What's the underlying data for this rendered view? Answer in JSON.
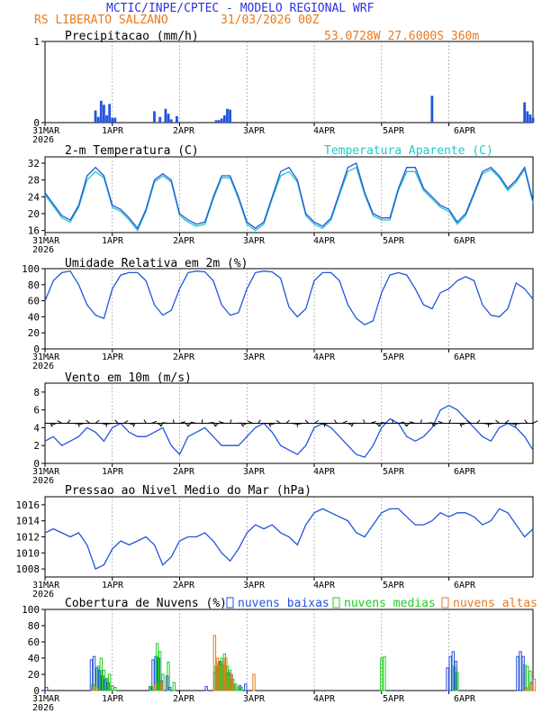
{
  "header": {
    "title": "MCTIC/INPE/CPTEC - MODELO REGIONAL WRF",
    "station": "RS LIBERATO SALZANO",
    "run": "31/03/2026 00Z",
    "coords": "53.0728W 27.6000S 360m"
  },
  "colors": {
    "title": "#3030e0",
    "orange": "#e87a20",
    "blue": "#2255dd",
    "cyan": "#20c8c8",
    "green": "#22cc22",
    "black": "#000000"
  },
  "x_axis": {
    "ticks": [
      "31MAR",
      "1APR",
      "2APR",
      "3APR",
      "4APR",
      "5APR",
      "6APR"
    ],
    "year": "2026",
    "hours_total": 174
  },
  "chart_data": [
    {
      "type": "bar",
      "name": "precip",
      "title": "Precipitacao (mm/h)",
      "ylim": [
        0,
        1
      ],
      "yticks": [
        0,
        1
      ],
      "series": [
        {
          "name": "precipitacao",
          "x": [
            18,
            19,
            20,
            21,
            22,
            23,
            24,
            25,
            39,
            41,
            43,
            44,
            45,
            47,
            61,
            62,
            63,
            64,
            65,
            66,
            67,
            121,
            138,
            171,
            172,
            173,
            174
          ],
          "values": [
            0.15,
            0.07,
            0.27,
            0.22,
            0.09,
            0.23,
            0.06,
            0.06,
            0.14,
            0.07,
            0.17,
            0.11,
            0.04,
            0.08,
            0.03,
            0.03,
            0.05,
            0.09,
            0.17,
            0.16,
            0.01,
            0.01,
            0.33,
            0.25,
            0.14,
            0.1,
            0.06
          ]
        }
      ]
    },
    {
      "type": "line",
      "name": "temp",
      "title": "2-m Temperatura (C)",
      "legend": "Temperatura Aparente (C)",
      "ylim": [
        15.5,
        33.5
      ],
      "yticks": [
        16,
        20,
        24,
        28,
        32
      ],
      "series": [
        {
          "name": "Temperatura 2m",
          "x": [
            0,
            6,
            9,
            12,
            15,
            18,
            21,
            24,
            27,
            30,
            33,
            36,
            39,
            42,
            45,
            48,
            51,
            54,
            57,
            60,
            63,
            66,
            69,
            72,
            75,
            78,
            81,
            84,
            87,
            90,
            93,
            96,
            99,
            102,
            105,
            108,
            111,
            114,
            117,
            120,
            123,
            126,
            129,
            132,
            135,
            138,
            141,
            144,
            147,
            150,
            153,
            156,
            159,
            162,
            165,
            168,
            171,
            174
          ],
          "values": [
            25,
            19.5,
            18.5,
            22,
            29,
            31,
            29,
            22,
            21,
            19,
            16.5,
            21,
            28,
            29.5,
            28,
            20,
            18.5,
            17.5,
            18,
            24,
            29,
            29,
            24,
            18,
            16.5,
            18,
            24,
            30,
            31,
            28,
            20,
            18,
            17,
            19,
            25,
            31,
            32,
            25,
            20,
            19,
            19,
            26,
            31,
            31,
            26,
            24,
            22,
            21,
            18,
            20,
            25,
            30,
            31,
            29,
            26,
            28,
            31,
            23
          ]
        },
        {
          "name": "Temperatura Aparente",
          "x": [
            0,
            6,
            9,
            12,
            15,
            18,
            21,
            24,
            27,
            30,
            33,
            36,
            39,
            42,
            45,
            48,
            51,
            54,
            57,
            60,
            63,
            66,
            69,
            72,
            75,
            78,
            81,
            84,
            87,
            90,
            93,
            96,
            99,
            102,
            105,
            108,
            111,
            114,
            117,
            120,
            123,
            126,
            129,
            132,
            135,
            138,
            141,
            144,
            147,
            150,
            153,
            156,
            159,
            162,
            165,
            168,
            171,
            174
          ],
          "values": [
            24.5,
            19,
            18,
            21.5,
            28,
            30,
            28.5,
            21.5,
            20.5,
            18.5,
            16,
            20.5,
            27.5,
            29,
            27.5,
            19.5,
            18,
            17,
            17.5,
            23.5,
            28.5,
            28.5,
            23.5,
            17.5,
            16,
            17.5,
            23.5,
            29,
            30,
            27.5,
            19.5,
            17.5,
            16.5,
            18.5,
            24.5,
            30,
            31,
            24.5,
            19.5,
            18.5,
            18.5,
            25.5,
            30,
            30,
            25.5,
            23.5,
            21.5,
            20.5,
            17.5,
            19.5,
            24.5,
            29.5,
            30.5,
            28.5,
            25.5,
            27.5,
            30.5,
            22.5
          ]
        }
      ]
    },
    {
      "type": "line",
      "name": "rh",
      "title": "Umidade Relativa em 2m (%)",
      "ylim": [
        0,
        100
      ],
      "yticks": [
        0,
        20,
        40,
        60,
        80,
        100
      ],
      "series": [
        {
          "name": "UR",
          "x": [
            0,
            3,
            6,
            9,
            12,
            15,
            18,
            21,
            24,
            27,
            30,
            33,
            36,
            39,
            42,
            45,
            48,
            51,
            54,
            57,
            60,
            63,
            66,
            69,
            72,
            75,
            78,
            81,
            84,
            87,
            90,
            93,
            96,
            99,
            102,
            105,
            108,
            111,
            114,
            117,
            120,
            123,
            126,
            129,
            132,
            135,
            138,
            141,
            144,
            147,
            150,
            153,
            156,
            159,
            162,
            165,
            168,
            171,
            174
          ],
          "values": [
            60,
            85,
            95,
            97,
            80,
            55,
            42,
            38,
            75,
            92,
            95,
            95,
            85,
            55,
            42,
            48,
            75,
            95,
            97,
            96,
            85,
            55,
            42,
            45,
            75,
            95,
            97,
            96,
            88,
            52,
            40,
            50,
            85,
            95,
            95,
            85,
            55,
            38,
            30,
            35,
            70,
            92,
            95,
            92,
            75,
            55,
            50,
            70,
            75,
            85,
            90,
            85,
            55,
            42,
            40,
            50,
            82,
            75,
            62
          ]
        }
      ]
    },
    {
      "type": "line",
      "name": "wind",
      "title": "Vento em 10m (m/s)",
      "ylim": [
        0,
        9
      ],
      "yticks": [
        0,
        2,
        4,
        6,
        8
      ],
      "series": [
        {
          "name": "vento",
          "x": [
            0,
            3,
            6,
            9,
            12,
            15,
            18,
            21,
            24,
            27,
            30,
            33,
            36,
            39,
            42,
            45,
            48,
            51,
            54,
            57,
            60,
            63,
            66,
            69,
            72,
            75,
            78,
            81,
            84,
            87,
            90,
            93,
            96,
            99,
            102,
            105,
            108,
            111,
            114,
            117,
            120,
            123,
            126,
            129,
            132,
            135,
            138,
            141,
            144,
            147,
            150,
            153,
            156,
            159,
            162,
            165,
            168,
            171,
            174
          ],
          "values": [
            2.5,
            3.0,
            2.0,
            2.5,
            3.0,
            4.0,
            3.5,
            2.5,
            4.0,
            4.5,
            3.5,
            3.0,
            3.0,
            3.5,
            4.0,
            2.0,
            1.0,
            3.0,
            3.5,
            4.0,
            3.0,
            2.0,
            2.0,
            2.0,
            3.0,
            4.0,
            4.5,
            3.5,
            2.0,
            1.5,
            1.0,
            2.0,
            4.0,
            4.5,
            4.0,
            3.0,
            2.0,
            1.0,
            0.7,
            2.0,
            4.0,
            5.0,
            4.5,
            3.0,
            2.5,
            3.0,
            4.0,
            6.0,
            6.5,
            6.0,
            5.0,
            4.0,
            3.0,
            2.5,
            4.0,
            4.5,
            4.0,
            3.0,
            1.5
          ]
        }
      ]
    },
    {
      "type": "line",
      "name": "pres",
      "title": "Pressao ao Nivel Medio do Mar (hPa)",
      "ylim": [
        1007,
        1017
      ],
      "yticks": [
        1008,
        1010,
        1012,
        1014,
        1016
      ],
      "series": [
        {
          "name": "PNMM",
          "x": [
            0,
            3,
            6,
            9,
            12,
            15,
            18,
            21,
            24,
            27,
            30,
            33,
            36,
            39,
            42,
            45,
            48,
            51,
            54,
            57,
            60,
            63,
            66,
            69,
            72,
            75,
            78,
            81,
            84,
            87,
            90,
            93,
            96,
            99,
            102,
            105,
            108,
            111,
            114,
            117,
            120,
            123,
            126,
            129,
            132,
            135,
            138,
            141,
            144,
            147,
            150,
            153,
            156,
            159,
            162,
            165,
            168,
            171,
            174
          ],
          "values": [
            1012.5,
            1013,
            1012.5,
            1012,
            1012.5,
            1011,
            1008,
            1008.5,
            1010.5,
            1011.5,
            1011,
            1011.5,
            1012,
            1011,
            1008.5,
            1009.5,
            1011.5,
            1012,
            1012,
            1012.5,
            1011.5,
            1010,
            1009,
            1010.5,
            1012.5,
            1013.5,
            1013,
            1013.5,
            1012.5,
            1012,
            1011,
            1013.5,
            1015,
            1015.5,
            1015,
            1014.5,
            1014,
            1012.5,
            1012,
            1013.5,
            1015,
            1015.5,
            1015.5,
            1014.5,
            1013.5,
            1013.5,
            1014,
            1015,
            1014.5,
            1015,
            1015,
            1014.5,
            1013.5,
            1014,
            1015.5,
            1015,
            1013.5,
            1012,
            1013
          ]
        }
      ]
    },
    {
      "type": "bar",
      "name": "cloud",
      "title": "Cobertura de Nuvens (%)",
      "ylim": [
        0,
        100
      ],
      "yticks": [
        0,
        20,
        40,
        60,
        80,
        100
      ],
      "legend": [
        "nuvens baixas",
        "nuvens medias",
        "nuvens altas"
      ],
      "series": [
        {
          "name": "nuvens baixas",
          "x": [
            1,
            17,
            18,
            19,
            20,
            21,
            22,
            23,
            38,
            39,
            40,
            41,
            42,
            44,
            45,
            58,
            61,
            62,
            63,
            64,
            66,
            67,
            70,
            72,
            144,
            145,
            146,
            147,
            169,
            170,
            171,
            174
          ],
          "values": [
            4,
            38,
            42,
            28,
            25,
            18,
            14,
            10,
            5,
            38,
            42,
            40,
            12,
            18,
            4,
            5,
            22,
            30,
            36,
            12,
            22,
            18,
            6,
            8,
            28,
            42,
            48,
            36,
            42,
            48,
            42,
            10
          ]
        },
        {
          "name": "nuvens medias",
          "x": [
            17,
            19,
            20,
            21,
            22,
            23,
            24,
            25,
            38,
            40,
            41,
            42,
            44,
            46,
            61,
            62,
            63,
            64,
            65,
            66,
            67,
            68,
            69,
            70,
            120,
            121,
            146,
            147,
            171,
            172,
            173
          ],
          "values": [
            8,
            30,
            40,
            25,
            15,
            20,
            6,
            4,
            5,
            58,
            48,
            20,
            35,
            10,
            30,
            35,
            40,
            45,
            30,
            25,
            14,
            8,
            4,
            4,
            40,
            42,
            30,
            22,
            32,
            30,
            24
          ]
        },
        {
          "name": "nuvens altas",
          "x": [
            17,
            18,
            39,
            41,
            60,
            61,
            62,
            63,
            64,
            65,
            66,
            67,
            74,
            171,
            173,
            174
          ],
          "values": [
            6,
            4,
            8,
            10,
            68,
            40,
            30,
            32,
            40,
            18,
            20,
            8,
            20,
            4,
            8,
            14
          ]
        }
      ]
    }
  ]
}
